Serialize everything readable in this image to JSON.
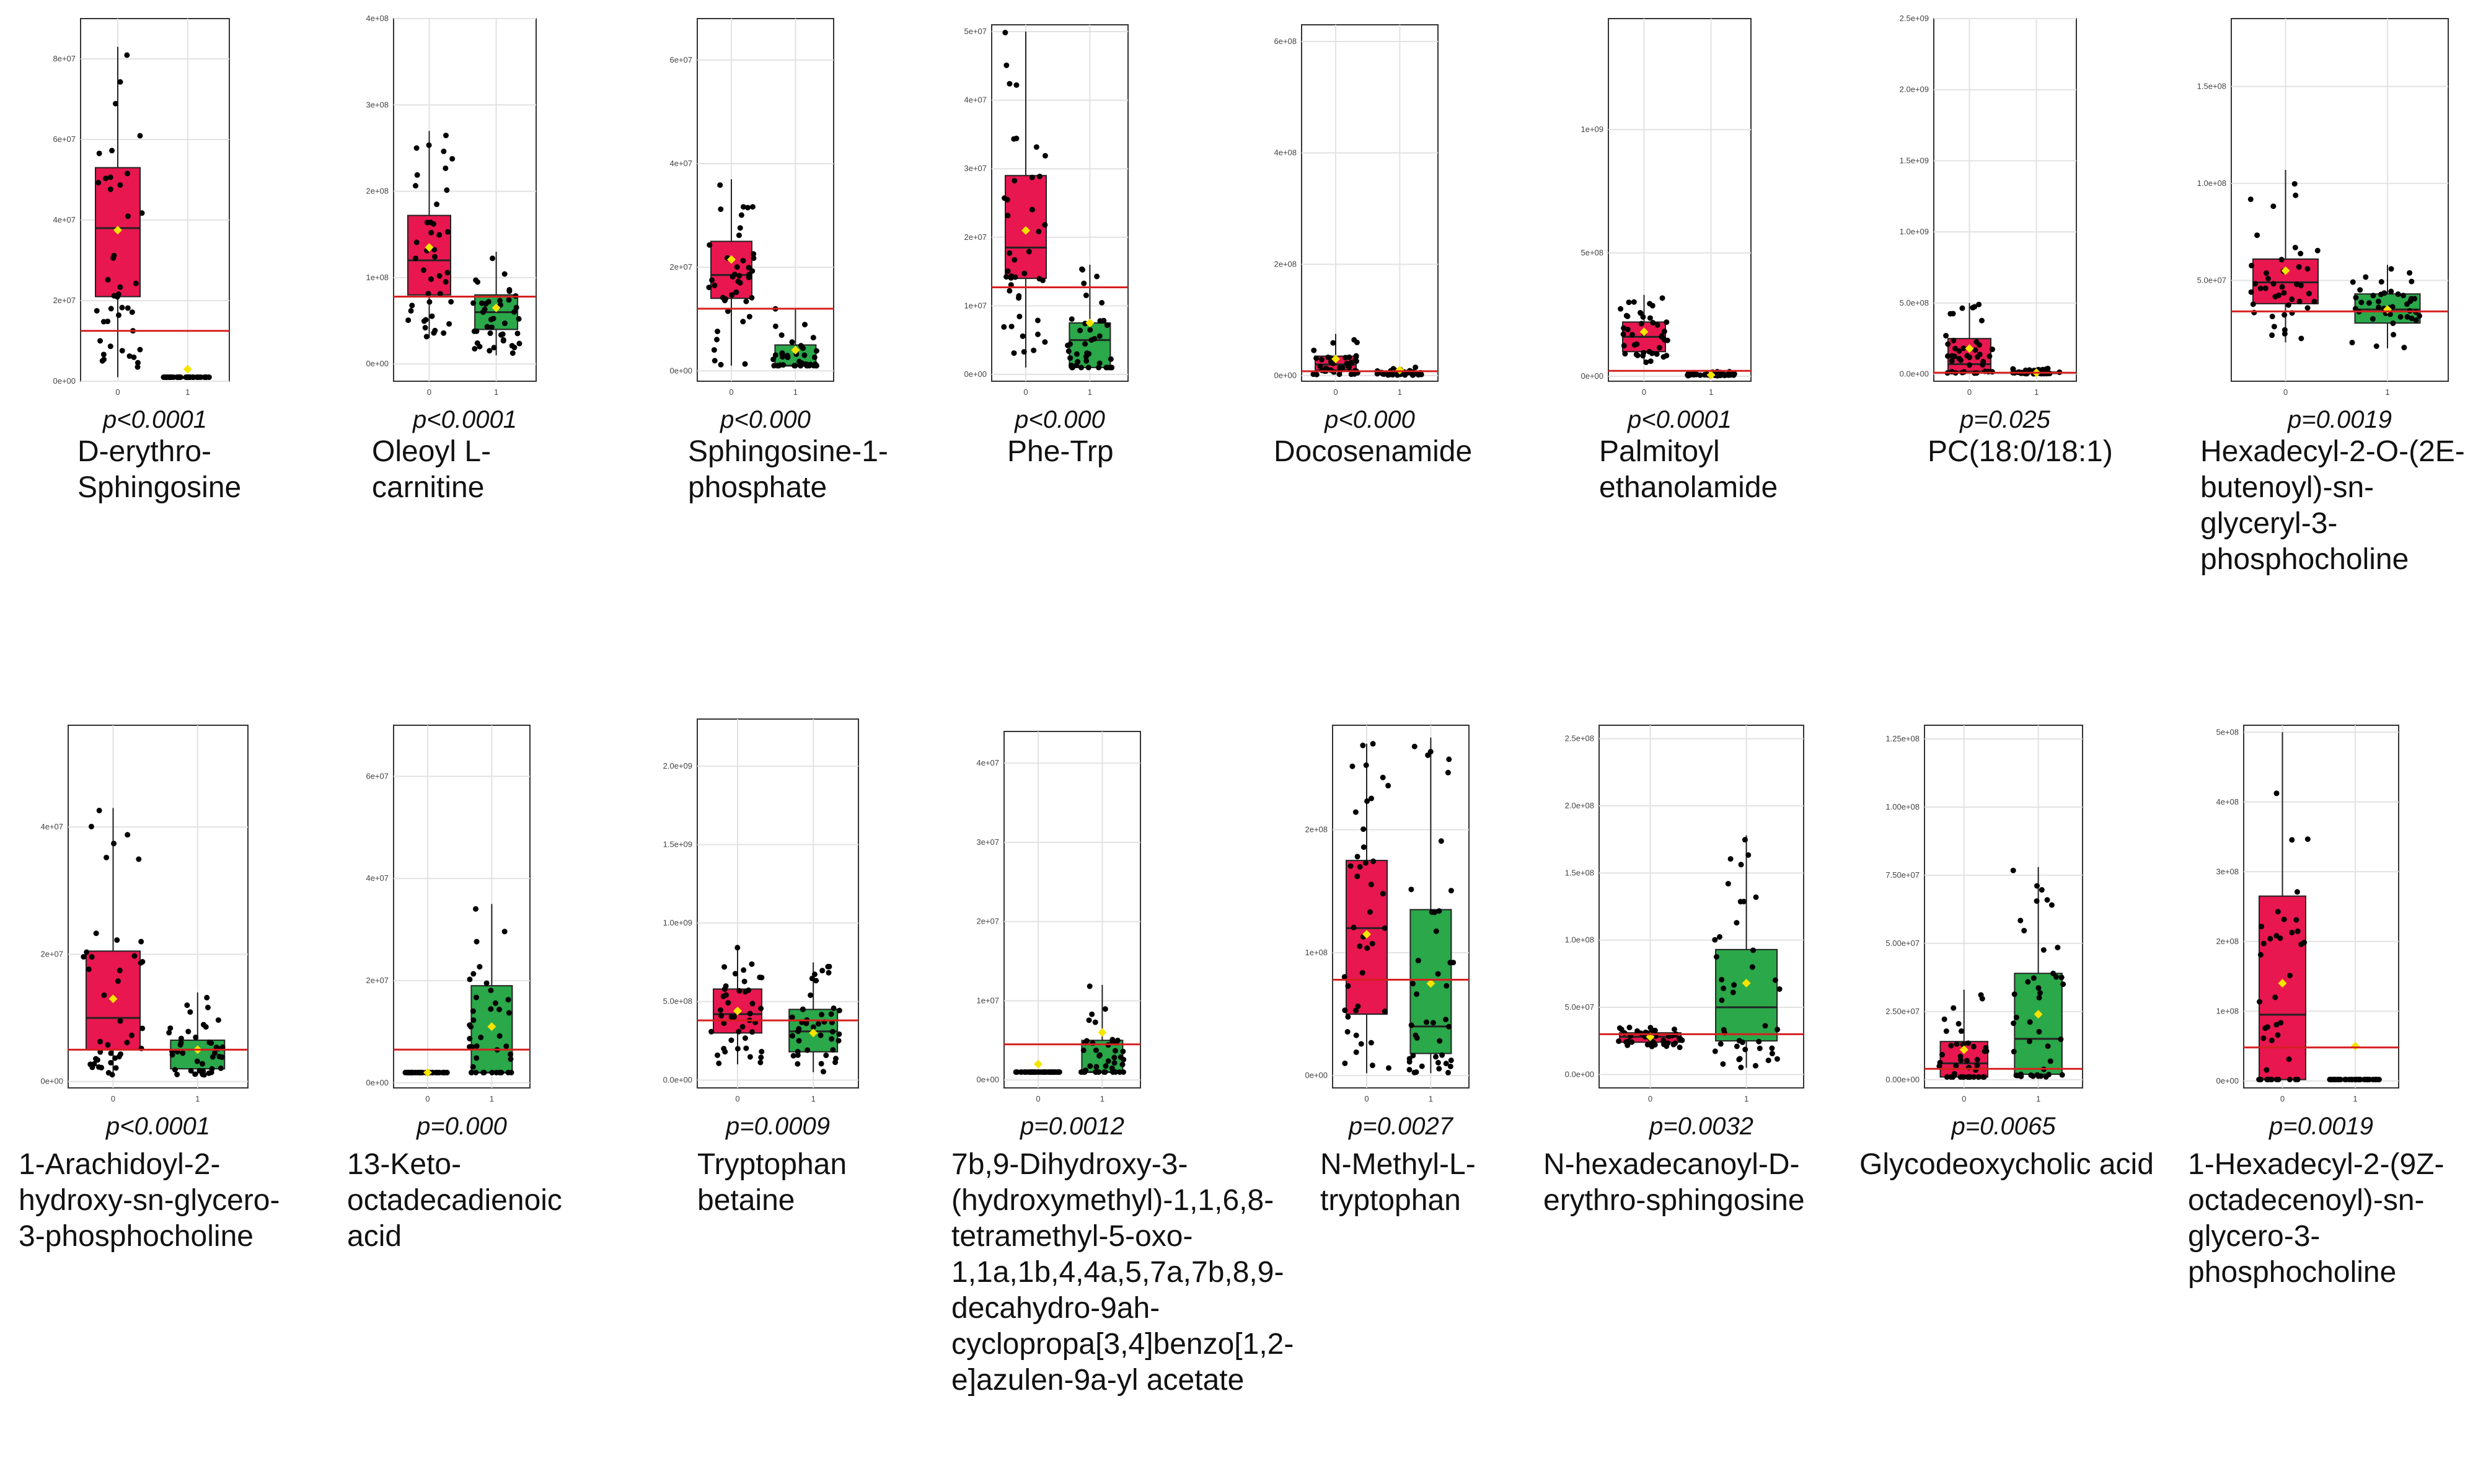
{
  "chart_data": [
    {
      "type": "box",
      "name": "D-erythro-\nSphingosine",
      "pvalue": "p<0.0001",
      "yticks": [
        "0e+00",
        "2e+07",
        "4e+07",
        "6e+07",
        "8e+07"
      ],
      "ylim": [
        0,
        90000000.0
      ],
      "x_categories": [
        "0",
        "1"
      ],
      "threshold": 12500000.0,
      "groups": [
        {
          "q1": 21000000.0,
          "median": 38000000.0,
          "q3": 53000000.0,
          "wlo": 1000000.0,
          "whi": 83000000.0,
          "mean": 37500000.0,
          "color": "#e8174f"
        },
        {
          "q1": 1000000.0,
          "median": 1000000.0,
          "q3": 1000000.0,
          "wlo": 1000000.0,
          "whi": 1000000.0,
          "mean": 3000000.0,
          "color": "#2aa84a"
        }
      ]
    },
    {
      "type": "box",
      "name": "Oleoyl L-\ncarnitine",
      "pvalue": "p<0.0001",
      "yticks": [
        "0e+00",
        "1e+08",
        "2e+08",
        "3e+08",
        "4e+08"
      ],
      "ylim": [
        -20000000.0,
        400000000.0
      ],
      "x_categories": [
        "0",
        "1"
      ],
      "threshold": 78000000.0,
      "groups": [
        {
          "q1": 80000000.0,
          "median": 120000000.0,
          "q3": 172000000.0,
          "wlo": 30000000.0,
          "whi": 270000000.0,
          "mean": 135000000.0,
          "color": "#e8174f"
        },
        {
          "q1": 40000000.0,
          "median": 60000000.0,
          "q3": 80000000.0,
          "wlo": 10000000.0,
          "whi": 130000000.0,
          "mean": 65000000.0,
          "color": "#2aa84a"
        }
      ]
    },
    {
      "type": "box",
      "name": "Sphingosine-1-\nphosphate",
      "pvalue": "p<0.000",
      "yticks": [
        "0e+00",
        "2e+07",
        "4e+07",
        "6e+07"
      ],
      "ylim": [
        -2000000.0,
        68000000.0
      ],
      "x_categories": [
        "0",
        "1"
      ],
      "threshold": 12000000.0,
      "groups": [
        {
          "q1": 14000000.0,
          "median": 18500000.0,
          "q3": 25000000.0,
          "wlo": 1000000.0,
          "whi": 37000000.0,
          "mean": 21500000.0,
          "color": "#e8174f"
        },
        {
          "q1": 1000000.0,
          "median": 1000000.0,
          "q3": 5000000.0,
          "wlo": 1000000.0,
          "whi": 12000000.0,
          "mean": 4000000.0,
          "color": "#2aa84a"
        }
      ]
    },
    {
      "type": "box",
      "name": "Phe-Trp",
      "pvalue": "p<0.000",
      "yticks": [
        "0e+00",
        "1e+07",
        "2e+07",
        "3e+07",
        "4e+07",
        "5e+07"
      ],
      "ylim": [
        -1000000.0,
        51000000.0
      ],
      "x_categories": [
        "0",
        "1"
      ],
      "threshold": 12700000.0,
      "groups": [
        {
          "q1": 14000000.0,
          "median": 18500000.0,
          "q3": 29000000.0,
          "wlo": 1000000.0,
          "whi": 50000000.0,
          "mean": 21000000.0,
          "color": "#e8174f"
        },
        {
          "q1": 1000000.0,
          "median": 5000000.0,
          "q3": 7500000.0,
          "wlo": 1000000.0,
          "whi": 16000000.0,
          "mean": 7500000.0,
          "color": "#2aa84a"
        }
      ]
    },
    {
      "type": "box",
      "name": "Docosenamide",
      "pvalue": "p<0.000",
      "yticks": [
        "0e+00",
        "2e+08",
        "4e+08",
        "6e+08"
      ],
      "ylim": [
        -10000000.0,
        630000000.0
      ],
      "x_categories": [
        "0",
        "1"
      ],
      "threshold": 8000000.0,
      "groups": [
        {
          "q1": 10000000.0,
          "median": 20000000.0,
          "q3": 35000000.0,
          "wlo": 2000000.0,
          "whi": 75000000.0,
          "mean": 30000000.0,
          "color": "#e8174f"
        },
        {
          "q1": 2000000.0,
          "median": 5000000.0,
          "q3": 7000000.0,
          "wlo": 1000000.0,
          "whi": 15000000.0,
          "mean": 10000000.0,
          "color": "#2aa84a"
        }
      ]
    },
    {
      "type": "box",
      "name": "Palmitoyl\nethanolamide",
      "pvalue": "p<0.0001",
      "yticks": [
        "0e+00",
        "5e+08",
        "1e+09"
      ],
      "ylim": [
        -20000000.0,
        1450000000.0
      ],
      "x_categories": [
        "0",
        "1"
      ],
      "threshold": 22000000.0,
      "groups": [
        {
          "q1": 100000000.0,
          "median": 160000000.0,
          "q3": 220000000.0,
          "wlo": 50000000.0,
          "whi": 330000000.0,
          "mean": 180000000.0,
          "color": "#e8174f"
        },
        {
          "q1": 5000000.0,
          "median": 5000000.0,
          "q3": 8000000.0,
          "wlo": 2000000.0,
          "whi": 20000000.0,
          "mean": 5000000.0,
          "color": "#2aa84a"
        }
      ]
    },
    {
      "type": "box",
      "name": "PC(18:0/18:1)",
      "pvalue": "p=0.025",
      "yticks": [
        "0.0e+00",
        "5.0e+08",
        "1.0e+09",
        "1.5e+09",
        "2.0e+09",
        "2.5e+09"
      ],
      "ylim": [
        -50000000.0,
        2500000000.0
      ],
      "x_categories": [
        "0",
        "1"
      ],
      "threshold": 10000000.0,
      "groups": [
        {
          "q1": 20000000.0,
          "median": 70000000.0,
          "q3": 250000000.0,
          "wlo": 5000000.0,
          "whi": 500000000.0,
          "mean": 180000000.0,
          "color": "#e8174f"
        },
        {
          "q1": 5000000.0,
          "median": 10000000.0,
          "q3": 15000000.0,
          "wlo": 2000000.0,
          "whi": 40000000.0,
          "mean": 10000000.0,
          "color": "#2aa84a"
        }
      ]
    },
    {
      "type": "box",
      "name": "Hexadecyl-2-O-(2E-\nbutenoyl)-sn-\nglyceryl-3-\nphosphocholine",
      "pvalue": "p=0.0019",
      "yticks": [
        "5.0e+07",
        "1.0e+08",
        "1.5e+08"
      ],
      "ylim": [
        -2000000.0,
        185000000.0
      ],
      "x_categories": [
        "0",
        "1"
      ],
      "threshold": 34000000.0,
      "groups": [
        {
          "q1": 38000000.0,
          "median": 49000000.0,
          "q3": 61000000.0,
          "wlo": 18000000.0,
          "whi": 107000000.0,
          "mean": 55000000.0,
          "color": "#e8174f"
        },
        {
          "q1": 28000000.0,
          "median": 35000000.0,
          "q3": 43000000.0,
          "wlo": 15000000.0,
          "whi": 58000000.0,
          "mean": 35000000.0,
          "color": "#2aa84a"
        }
      ]
    },
    {
      "type": "box",
      "name": "1-Arachidoyl-2-\nhydroxy-sn-glycero-\n3-phosphocholine",
      "pvalue": "p<0.0001",
      "yticks": [
        "0e+00",
        "2e+07",
        "4e+07"
      ],
      "ylim": [
        -1000000.0,
        56000000.0
      ],
      "x_categories": [
        "0",
        "1"
      ],
      "threshold": 5000000.0,
      "groups": [
        {
          "q1": 5000000.0,
          "median": 10000000.0,
          "q3": 20500000.0,
          "wlo": 1000000.0,
          "whi": 43000000.0,
          "mean": 13000000.0,
          "color": "#e8174f"
        },
        {
          "q1": 2000000.0,
          "median": 5000000.0,
          "q3": 6500000.0,
          "wlo": 1000000.0,
          "whi": 14000000.0,
          "mean": 5000000.0,
          "color": "#2aa84a"
        }
      ]
    },
    {
      "type": "box",
      "name": "13-Keto-\noctadecadienoic\nacid",
      "pvalue": "p=0.000",
      "yticks": [
        "0e+00",
        "2e+07",
        "4e+07",
        "6e+07"
      ],
      "ylim": [
        -1000000.0,
        70000000.0
      ],
      "x_categories": [
        "0",
        "1"
      ],
      "threshold": 6500000.0,
      "groups": [
        {
          "q1": 2000000.0,
          "median": 2000000.0,
          "q3": 2000000.0,
          "wlo": 2000000.0,
          "whi": 2000000.0,
          "mean": 2000000.0,
          "color": "#e8174f"
        },
        {
          "q1": 2000000.0,
          "median": 2000000.0,
          "q3": 19000000.0,
          "wlo": 2000000.0,
          "whi": 35000000.0,
          "mean": 11000000.0,
          "color": "#2aa84a"
        }
      ]
    },
    {
      "type": "box",
      "name": "Tryptophan\nbetaine",
      "pvalue": "p=0.0009",
      "yticks": [
        "0.0e+00",
        "5.0e+08",
        "1.0e+09",
        "1.5e+09",
        "2.0e+09"
      ],
      "ylim": [
        -50000000.0,
        2300000000.0
      ],
      "x_categories": [
        "0",
        "1"
      ],
      "threshold": 380000000.0,
      "groups": [
        {
          "q1": 300000000.0,
          "median": 420000000.0,
          "q3": 580000000.0,
          "wlo": 100000000.0,
          "whi": 850000000.0,
          "mean": 440000000.0,
          "color": "#e8174f"
        },
        {
          "q1": 180000000.0,
          "median": 310000000.0,
          "q3": 450000000.0,
          "wlo": 50000000.0,
          "whi": 750000000.0,
          "mean": 300000000.0,
          "color": "#2aa84a"
        }
      ]
    },
    {
      "type": "box",
      "name": "7b,9-Dihydroxy-3-\n(hydroxymethyl)-1,1,6,8-\ntetramethyl-5-oxo-\n1,1a,1b,4,4a,5,7a,7b,8,9-\ndecahydro-9ah-\ncyclopropa[3,4]benzo[1,2-\ne]azulen-9a-yl acetate",
      "pvalue": "p=0.0012",
      "yticks": [
        "0e+00",
        "1e+07",
        "2e+07",
        "3e+07",
        "4e+07"
      ],
      "ylim": [
        -1000000.0,
        44000000.0
      ],
      "x_categories": [
        "0",
        "1"
      ],
      "threshold": 4500000.0,
      "groups": [
        {
          "q1": 1000000.0,
          "median": 1000000.0,
          "q3": 1000000.0,
          "wlo": 1000000.0,
          "whi": 1000000.0,
          "mean": 2000000.0,
          "color": "#e8174f"
        },
        {
          "q1": 1000000.0,
          "median": 1000000.0,
          "q3": 5000000.0,
          "wlo": 1000000.0,
          "whi": 12000000.0,
          "mean": 6000000.0,
          "color": "#2aa84a"
        }
      ]
    },
    {
      "type": "box",
      "name": "N-Methyl-L-\ntryptophan",
      "pvalue": "p=0.0027",
      "yticks": [
        "0e+00",
        "1e+08",
        "2e+08"
      ],
      "ylim": [
        -10000000.0,
        285000000.0
      ],
      "x_categories": [
        "0",
        "1"
      ],
      "threshold": 78000000.0,
      "groups": [
        {
          "q1": 50000000.0,
          "median": 120000000.0,
          "q3": 175000000.0,
          "wlo": 2000000.0,
          "whi": 270000000.0,
          "mean": 115000000.0,
          "color": "#e8174f"
        },
        {
          "q1": 18000000.0,
          "median": 40000000.0,
          "q3": 135000000.0,
          "wlo": 2000000.0,
          "whi": 275000000.0,
          "mean": 75000000.0,
          "color": "#2aa84a"
        }
      ]
    },
    {
      "type": "box",
      "name": "N-hexadecanoyl-D-\nerythro-sphingosine",
      "pvalue": "p=0.0032",
      "yticks": [
        "0.0e+00",
        "5.0e+07",
        "1.0e+08",
        "1.5e+08",
        "2.0e+08",
        "2.5e+08"
      ],
      "ylim": [
        -10000000.0,
        260000000.0
      ],
      "x_categories": [
        "0",
        "1"
      ],
      "threshold": 30000000.0,
      "groups": [
        {
          "q1": 24000000.0,
          "median": 28000000.0,
          "q3": 31000000.0,
          "wlo": 20000000.0,
          "whi": 35000000.0,
          "mean": 28000000.0,
          "color": "#e8174f"
        },
        {
          "q1": 25000000.0,
          "median": 50000000.0,
          "q3": 93000000.0,
          "wlo": 5000000.0,
          "whi": 178000000.0,
          "mean": 68000000.0,
          "color": "#2aa84a"
        }
      ]
    },
    {
      "type": "box",
      "name": "Glycodeoxycholic acid",
      "pvalue": "p=0.0065",
      "yticks": [
        "0.00e+00",
        "2.50e+07",
        "5.00e+07",
        "7.50e+07",
        "1.00e+08",
        "1.25e+08"
      ],
      "ylim": [
        -3000000.0,
        130000000.0
      ],
      "x_categories": [
        "0",
        "1"
      ],
      "threshold": 4000000.0,
      "groups": [
        {
          "q1": 1000000.0,
          "median": 6000000.0,
          "q3": 14000000.0,
          "wlo": 1000000.0,
          "whi": 33000000.0,
          "mean": 11000000.0,
          "color": "#e8174f"
        },
        {
          "q1": 2000000.0,
          "median": 15000000.0,
          "q3": 39000000.0,
          "wlo": 1000000.0,
          "whi": 78000000.0,
          "mean": 24000000.0,
          "color": "#2aa84a"
        }
      ]
    },
    {
      "type": "box",
      "name": "1-Hexadecyl-2-(9Z-\noctadecenoyl)-sn-\nglycero-3-\nphosphocholine",
      "pvalue": "p=0.0019",
      "yticks": [
        "0e+00",
        "1e+08",
        "2e+08",
        "3e+08",
        "4e+08",
        "5e+08"
      ],
      "ylim": [
        -10000000.0,
        510000000.0
      ],
      "x_categories": [
        "0",
        "1"
      ],
      "threshold": 48000000.0,
      "groups": [
        {
          "q1": 2000000.0,
          "median": 95000000.0,
          "q3": 265000000.0,
          "wlo": 2000000.0,
          "whi": 500000000.0,
          "mean": 140000000.0,
          "color": "#e8174f"
        },
        {
          "q1": 2000000.0,
          "median": 2000000.0,
          "q3": 2000000.0,
          "wlo": 2000000.0,
          "whi": 2000000.0,
          "mean": 50000000.0,
          "color": "#2aa84a"
        }
      ]
    }
  ]
}
